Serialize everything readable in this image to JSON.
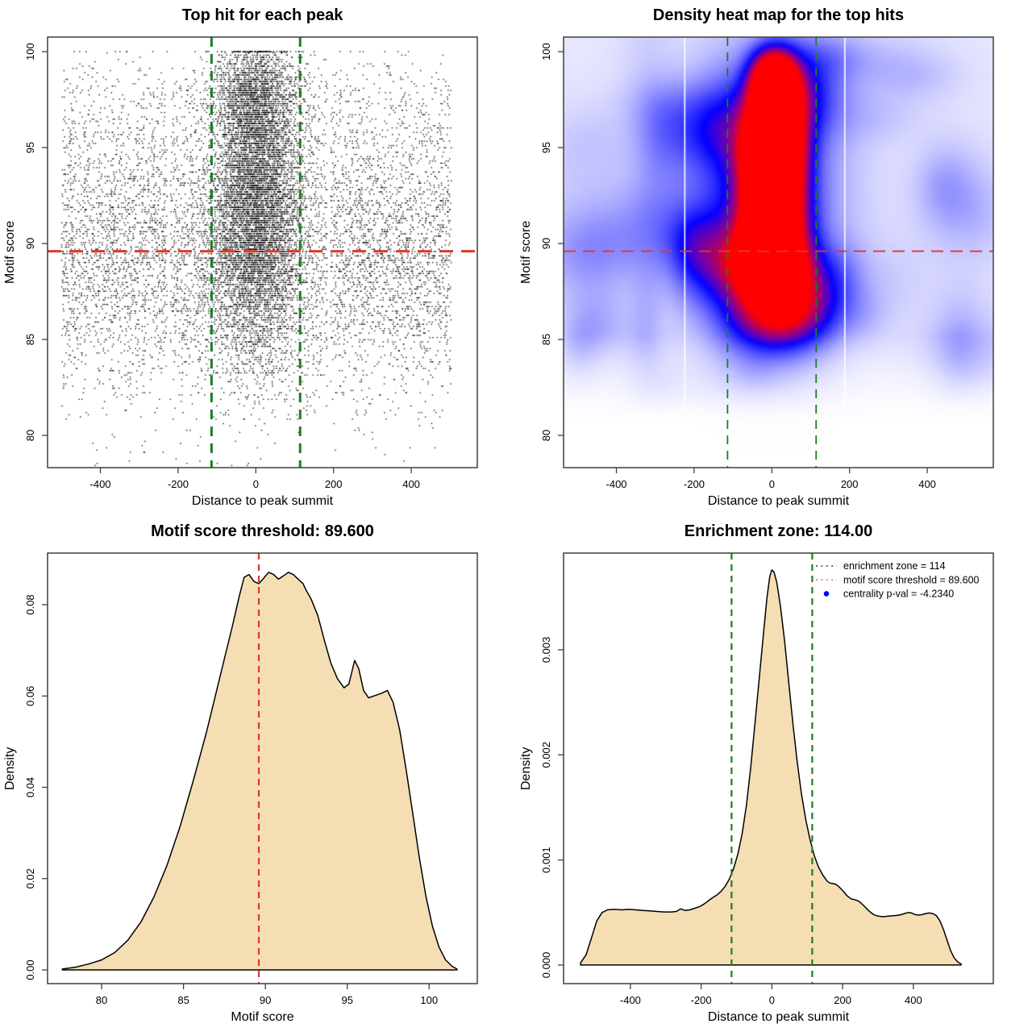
{
  "figure": {
    "background": "#ffffff"
  },
  "chart_data": [
    {
      "panel": "top-left",
      "type": "scatter",
      "title": "Top hit for each peak",
      "xlabel": "Distance to peak summit",
      "ylabel": "Motif score",
      "xlim": [
        -536,
        570
      ],
      "ylim": [
        78.32,
        100.76
      ],
      "xticks": {
        "values": [
          -400,
          -200,
          0,
          200,
          400
        ],
        "labels": [
          "-400",
          "-200",
          "0",
          "200",
          "400"
        ]
      },
      "yticks": {
        "values": [
          80,
          85,
          90,
          95,
          100
        ],
        "labels": [
          "80",
          "85",
          "90",
          "95",
          "100"
        ]
      },
      "hline": {
        "y": 89.6,
        "color": "#DC3A2C",
        "width": 3,
        "dash": [
          17,
          10
        ]
      },
      "vlines": {
        "x": [
          -114,
          114
        ],
        "color": "#1E7E1E",
        "width": 3,
        "dash": [
          12,
          9
        ]
      },
      "points": {
        "n": 16000,
        "seed": 1234,
        "color": "#000000",
        "x_uniform": [
          -500,
          503
        ],
        "center_sigma": 56,
        "score_quantum": 0.115,
        "score_max": 100,
        "center_prob": {
          "base": 0.18,
          "slope": 0.035,
          "min": 0.15,
          "max": 0.82
        },
        "gap_columns": [
          [
            -228,
            -220
          ],
          [
            184,
            192
          ]
        ]
      }
    },
    {
      "panel": "top-right",
      "type": "heatmap",
      "title": "Density heat map for the top hits",
      "xlabel": "Distance to peak summit",
      "ylabel": "Motif score",
      "xlim": [
        -536,
        570
      ],
      "ylim": [
        78.32,
        100.76
      ],
      "xticks": {
        "values": [
          -400,
          -200,
          0,
          200,
          400
        ],
        "labels": [
          "-400",
          "-200",
          "0",
          "200",
          "400"
        ]
      },
      "yticks": {
        "values": [
          80,
          85,
          90,
          95,
          100
        ],
        "labels": [
          "80",
          "85",
          "90",
          "95",
          "100"
        ]
      },
      "hline": {
        "y": 89.6,
        "color": "#DC3A2C",
        "width": 1.8,
        "dash": [
          15,
          9
        ]
      },
      "vlines": {
        "x": [
          -114,
          114
        ],
        "color": "#1E7E1E",
        "width": 1.8,
        "dash": [
          11,
          8
        ]
      },
      "field": {
        "background": 0.11,
        "fade": {
          "start": 80.8,
          "len": 4.4
        },
        "blobs": [
          [
            0,
            93.0,
            130,
            4.8,
            0.4
          ],
          [
            0,
            87.4,
            115,
            1.6,
            0.34
          ],
          [
            0,
            86.1,
            85,
            1.3,
            0.42
          ],
          [
            0,
            88.7,
            70,
            1.1,
            0.55
          ],
          [
            0,
            90.4,
            58,
            1.5,
            0.85
          ],
          [
            4,
            92.9,
            52,
            1.7,
            1.0
          ],
          [
            3,
            94.7,
            48,
            1.2,
            0.72
          ],
          [
            7,
            96.4,
            48,
            1.5,
            0.88
          ],
          [
            6,
            98.2,
            42,
            1.1,
            0.65
          ],
          [
            3,
            99.2,
            40,
            0.9,
            0.4
          ]
        ],
        "noise": {
          "seed": 77,
          "count": 52,
          "x_range": [
            -560,
            580
          ],
          "y_range": [
            81.5,
            101
          ],
          "sx_range": [
            30,
            100
          ],
          "sy_range": [
            0.8,
            2.4
          ],
          "w_range": [
            0.05,
            0.14
          ]
        },
        "colors": {
          "zero": "#ffffff",
          "blue": "#1414ff",
          "red": "#ff0000",
          "blue_point": 0.62
        },
        "white_vlines": [
          -224,
          188
        ]
      }
    },
    {
      "panel": "bottom-left",
      "type": "area",
      "title": "Motif score threshold: 89.600",
      "xlabel": "Motif score",
      "ylabel": "Density",
      "xlim": [
        76.7,
        102.94
      ],
      "ylim": [
        -0.003,
        0.0913
      ],
      "xticks": {
        "values": [
          80,
          85,
          90,
          95,
          100
        ],
        "labels": [
          "80",
          "85",
          "90",
          "95",
          "100"
        ]
      },
      "yticks": {
        "values": [
          0,
          0.02,
          0.04,
          0.06,
          0.08
        ],
        "labels": [
          "0.00",
          "0.02",
          "0.04",
          "0.06",
          "0.08"
        ]
      },
      "vlines": {
        "x": [
          89.6
        ],
        "color": "#DC3A2C",
        "width": 2.2,
        "dash": [
          8,
          6
        ]
      },
      "fill": "#F5DEB3",
      "stroke": "#000000",
      "curve": [
        [
          77.6,
          0.0002
        ],
        [
          78.4,
          0.0006
        ],
        [
          79.2,
          0.0013
        ],
        [
          80,
          0.0022
        ],
        [
          80.8,
          0.0038
        ],
        [
          81.6,
          0.0065
        ],
        [
          82.4,
          0.0105
        ],
        [
          83.2,
          0.016
        ],
        [
          84,
          0.023
        ],
        [
          84.8,
          0.0315
        ],
        [
          85.6,
          0.0415
        ],
        [
          86.4,
          0.052
        ],
        [
          87.2,
          0.0638
        ],
        [
          88,
          0.0755
        ],
        [
          88.4,
          0.0818
        ],
        [
          88.7,
          0.086
        ],
        [
          89,
          0.0866
        ],
        [
          89.3,
          0.0851
        ],
        [
          89.6,
          0.0846
        ],
        [
          89.9,
          0.0858
        ],
        [
          90.2,
          0.0871
        ],
        [
          90.5,
          0.0866
        ],
        [
          90.8,
          0.0856
        ],
        [
          91.1,
          0.0863
        ],
        [
          91.4,
          0.0871
        ],
        [
          91.7,
          0.0866
        ],
        [
          92,
          0.0856
        ],
        [
          92.3,
          0.0846
        ],
        [
          92.5,
          0.0831
        ],
        [
          92.8,
          0.0812
        ],
        [
          93.2,
          0.0776
        ],
        [
          93.6,
          0.0722
        ],
        [
          94,
          0.0672
        ],
        [
          94.4,
          0.0638
        ],
        [
          94.8,
          0.0618
        ],
        [
          95.1,
          0.0626
        ],
        [
          95.45,
          0.0678
        ],
        [
          95.7,
          0.066
        ],
        [
          96,
          0.0612
        ],
        [
          96.3,
          0.0596
        ],
        [
          96.7,
          0.0601
        ],
        [
          97.1,
          0.0606
        ],
        [
          97.45,
          0.0612
        ],
        [
          97.8,
          0.0586
        ],
        [
          98.2,
          0.0526
        ],
        [
          98.6,
          0.0438
        ],
        [
          99,
          0.0342
        ],
        [
          99.4,
          0.0246
        ],
        [
          99.8,
          0.0162
        ],
        [
          100.2,
          0.0096
        ],
        [
          100.6,
          0.005
        ],
        [
          101,
          0.0022
        ],
        [
          101.4,
          0.0008
        ],
        [
          101.7,
          0.0002
        ]
      ]
    },
    {
      "panel": "bottom-right",
      "type": "area",
      "title": "Enrichment zone: 114.00",
      "xlabel": "Distance to peak summit",
      "ylabel": "Density",
      "xlim": [
        -589,
        626
      ],
      "ylim": [
        -0.000177,
        0.00392
      ],
      "xticks": {
        "values": [
          -400,
          -200,
          0,
          200,
          400
        ],
        "labels": [
          "-400",
          "-200",
          "0",
          "200",
          "400"
        ]
      },
      "yticks": {
        "values": [
          0,
          0.001,
          0.002,
          0.003
        ],
        "labels": [
          "0.000",
          "0.001",
          "0.002",
          "0.003"
        ]
      },
      "vlines": {
        "x": [
          -114,
          114
        ],
        "color": "#1E7E1E",
        "width": 2.2,
        "dash": [
          8,
          6
        ]
      },
      "fill": "#F5DEB3",
      "stroke": "#000000",
      "legend": {
        "items": [
          {
            "marker": "dotted-line",
            "color": "#1E7E1E",
            "label": "enrichment zone = 114"
          },
          {
            "marker": "dotted-line",
            "color": "#F0807A",
            "label": "motif score threshold = 89.600"
          },
          {
            "marker": "dot",
            "color": "#0000EE",
            "label": "centrality p-val = -4.2340"
          }
        ]
      },
      "curve": [
        [
          -541,
          2e-05
        ],
        [
          -525,
          0.0001
        ],
        [
          -510,
          0.00026
        ],
        [
          -495,
          0.00042
        ],
        [
          -480,
          0.0005
        ],
        [
          -465,
          0.000525
        ],
        [
          -445,
          0.00053
        ],
        [
          -425,
          0.000525
        ],
        [
          -405,
          0.00053
        ],
        [
          -385,
          0.000525
        ],
        [
          -365,
          0.00052
        ],
        [
          -345,
          0.000515
        ],
        [
          -325,
          0.00051
        ],
        [
          -305,
          0.000505
        ],
        [
          -285,
          0.000505
        ],
        [
          -270,
          0.00051
        ],
        [
          -258,
          0.000535
        ],
        [
          -246,
          0.00052
        ],
        [
          -232,
          0.000525
        ],
        [
          -218,
          0.00054
        ],
        [
          -205,
          0.000555
        ],
        [
          -192,
          0.00058
        ],
        [
          -180,
          0.00061
        ],
        [
          -168,
          0.00064
        ],
        [
          -156,
          0.000665
        ],
        [
          -144,
          0.0007
        ],
        [
          -132,
          0.00075
        ],
        [
          -120,
          0.00082
        ],
        [
          -108,
          0.00092
        ],
        [
          -96,
          0.00106
        ],
        [
          -84,
          0.00125
        ],
        [
          -72,
          0.00152
        ],
        [
          -60,
          0.00188
        ],
        [
          -48,
          0.00229
        ],
        [
          -36,
          0.00272
        ],
        [
          -24,
          0.00315
        ],
        [
          -14,
          0.00349
        ],
        [
          -6,
          0.0037
        ],
        [
          0,
          0.00376
        ],
        [
          6,
          0.00374
        ],
        [
          14,
          0.00364
        ],
        [
          24,
          0.00342
        ],
        [
          36,
          0.00308
        ],
        [
          48,
          0.00268
        ],
        [
          60,
          0.00228
        ],
        [
          72,
          0.00192
        ],
        [
          84,
          0.00162
        ],
        [
          96,
          0.00138
        ],
        [
          108,
          0.00119
        ],
        [
          120,
          0.00104
        ],
        [
          132,
          0.00093
        ],
        [
          144,
          0.000855
        ],
        [
          156,
          0.0008
        ],
        [
          164,
          0.00078
        ],
        [
          172,
          0.000775
        ],
        [
          180,
          0.00077
        ],
        [
          188,
          0.00075
        ],
        [
          200,
          0.00071
        ],
        [
          212,
          0.00066
        ],
        [
          224,
          0.00063
        ],
        [
          236,
          0.00062
        ],
        [
          244,
          0.00061
        ],
        [
          252,
          0.00059
        ],
        [
          264,
          0.00055
        ],
        [
          276,
          0.00051
        ],
        [
          288,
          0.00048
        ],
        [
          300,
          0.000465
        ],
        [
          315,
          0.00046
        ],
        [
          330,
          0.000465
        ],
        [
          345,
          0.00047
        ],
        [
          360,
          0.000475
        ],
        [
          375,
          0.00049
        ],
        [
          385,
          0.0005
        ],
        [
          395,
          0.000495
        ],
        [
          405,
          0.00048
        ],
        [
          415,
          0.000475
        ],
        [
          425,
          0.00048
        ],
        [
          435,
          0.00049
        ],
        [
          445,
          0.000495
        ],
        [
          455,
          0.00049
        ],
        [
          465,
          0.00047
        ],
        [
          475,
          0.00042
        ],
        [
          485,
          0.00034
        ],
        [
          495,
          0.00024
        ],
        [
          505,
          0.00014
        ],
        [
          515,
          7e-05
        ],
        [
          525,
          3e-05
        ],
        [
          535,
          1e-05
        ]
      ]
    }
  ]
}
